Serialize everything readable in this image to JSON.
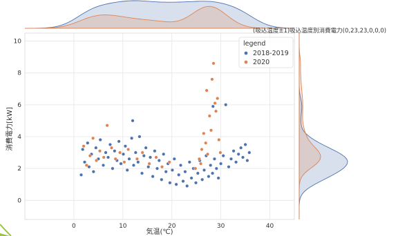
{
  "annotation": "(吸込温度±1)吸込温度別消費電力(0,23,23,0,0,0)",
  "chart_data": {
    "type": "scatter",
    "xlabel": "気温(℃)",
    "ylabel": "消費電力[kW]",
    "xlim": [
      -10,
      45
    ],
    "ylim": [
      -1.2,
      10.5
    ],
    "x_ticks": [
      0,
      10,
      20,
      30,
      40
    ],
    "y_ticks": [
      0,
      2,
      4,
      6,
      8,
      10
    ],
    "grid": true,
    "legend_position": "top-right",
    "legend_title": "legend",
    "marginal_plots": "kde",
    "colors": {
      "2018-2019": "#4c72b0",
      "2020": "#dd8452"
    },
    "series": [
      {
        "name": "2018-2019",
        "points": [
          [
            1.5,
            1.6
          ],
          [
            1.8,
            3.2
          ],
          [
            2.2,
            2.4
          ],
          [
            2.8,
            3.6
          ],
          [
            3.1,
            2.1
          ],
          [
            3.6,
            2.9
          ],
          [
            4.0,
            1.8
          ],
          [
            4.5,
            3.3
          ],
          [
            5.0,
            2.6
          ],
          [
            5.4,
            3.8
          ],
          [
            6.0,
            2.2
          ],
          [
            6.5,
            3.0
          ],
          [
            7.0,
            2.7
          ],
          [
            7.4,
            3.5
          ],
          [
            7.9,
            2.0
          ],
          [
            8.3,
            3.1
          ],
          [
            8.8,
            2.5
          ],
          [
            9.2,
            3.7
          ],
          [
            9.6,
            2.3
          ],
          [
            10.1,
            2.9
          ],
          [
            10.5,
            3.4
          ],
          [
            10.9,
            1.9
          ],
          [
            11.3,
            2.6
          ],
          [
            11.8,
            3.9
          ],
          [
            12.2,
            2.2
          ],
          [
            12.6,
            3.0
          ],
          [
            13.1,
            2.4
          ],
          [
            13.4,
            4.0
          ],
          [
            13.9,
            1.7
          ],
          [
            14.3,
            2.8
          ],
          [
            14.7,
            3.3
          ],
          [
            15.2,
            2.1
          ],
          [
            15.6,
            2.7
          ],
          [
            16.1,
            1.5
          ],
          [
            16.5,
            3.1
          ],
          [
            17.0,
            2.0
          ],
          [
            17.4,
            2.5
          ],
          [
            17.9,
            1.3
          ],
          [
            18.3,
            2.9
          ],
          [
            18.8,
            1.8
          ],
          [
            19.2,
            2.3
          ],
          [
            19.6,
            1.1
          ],
          [
            20.1,
            1.9
          ],
          [
            20.5,
            2.6
          ],
          [
            20.9,
            1.0
          ],
          [
            21.4,
            1.6
          ],
          [
            21.8,
            2.2
          ],
          [
            22.3,
            1.2
          ],
          [
            22.7,
            1.8
          ],
          [
            23.1,
            0.9
          ],
          [
            23.6,
            2.4
          ],
          [
            24.0,
            1.4
          ],
          [
            24.4,
            2.0
          ],
          [
            24.9,
            1.1
          ],
          [
            25.3,
            1.7
          ],
          [
            25.7,
            2.5
          ],
          [
            26.2,
            1.3
          ],
          [
            26.6,
            1.9
          ],
          [
            27.0,
            2.8
          ],
          [
            27.5,
            1.5
          ],
          [
            27.9,
            2.2
          ],
          [
            28.3,
            1.7
          ],
          [
            28.7,
            2.6
          ],
          [
            29.1,
            2.0
          ],
          [
            29.5,
            1.4
          ],
          [
            30.0,
            2.3
          ],
          [
            30.5,
            2.8
          ],
          [
            31.0,
            6.0
          ],
          [
            31.6,
            2.1
          ],
          [
            32.1,
            2.6
          ],
          [
            32.6,
            3.1
          ],
          [
            33.1,
            2.4
          ],
          [
            33.6,
            2.9
          ],
          [
            34.1,
            3.3
          ],
          [
            34.5,
            2.7
          ],
          [
            35.0,
            3.5
          ],
          [
            35.4,
            2.5
          ],
          [
            35.8,
            3.0
          ],
          [
            12.0,
            5.0
          ],
          [
            28.4,
            5.9
          ]
        ]
      },
      {
        "name": "2020",
        "points": [
          [
            2.0,
            3.4
          ],
          [
            2.6,
            2.2
          ],
          [
            3.3,
            2.8
          ],
          [
            3.9,
            3.9
          ],
          [
            4.6,
            2.5
          ],
          [
            5.3,
            3.1
          ],
          [
            6.1,
            2.7
          ],
          [
            6.8,
            4.7
          ],
          [
            7.7,
            3.3
          ],
          [
            8.5,
            2.6
          ],
          [
            9.4,
            3.0
          ],
          [
            10.3,
            2.4
          ],
          [
            11.1,
            3.2
          ],
          [
            12.9,
            2.6
          ],
          [
            14.0,
            3.0
          ],
          [
            15.4,
            2.3
          ],
          [
            16.8,
            2.7
          ],
          [
            18.0,
            2.1
          ],
          [
            19.5,
            2.4
          ],
          [
            24.8,
            2.0
          ],
          [
            25.6,
            2.6
          ],
          [
            26.1,
            3.2
          ],
          [
            26.5,
            4.2
          ],
          [
            26.9,
            3.6
          ],
          [
            27.3,
            2.9
          ],
          [
            27.7,
            5.3
          ],
          [
            28.0,
            4.4
          ],
          [
            28.2,
            7.6
          ],
          [
            28.5,
            8.6
          ],
          [
            28.8,
            6.1
          ],
          [
            29.0,
            5.6
          ],
          [
            29.3,
            6.4
          ],
          [
            29.6,
            3.8
          ],
          [
            29.9,
            3.0
          ],
          [
            27.1,
            6.9
          ],
          [
            25.9,
            2.3
          ]
        ]
      }
    ]
  }
}
